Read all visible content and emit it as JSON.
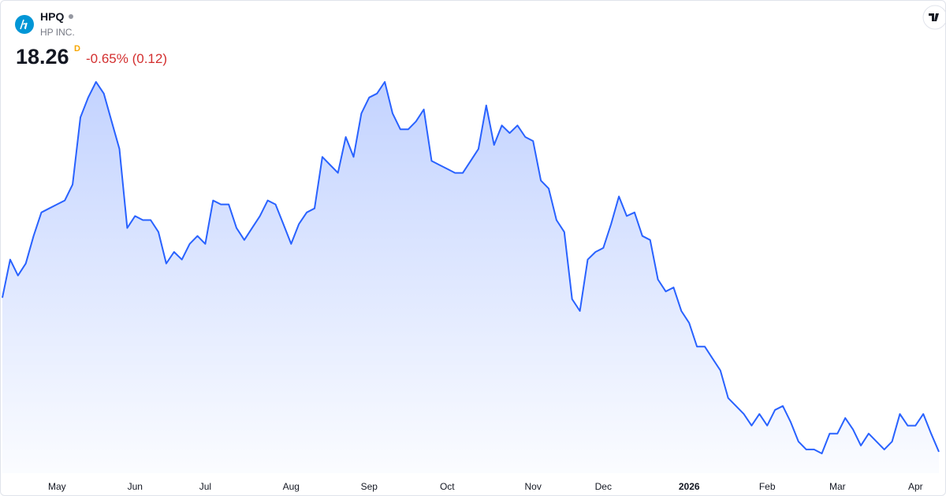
{
  "chart_data": {
    "type": "area",
    "title": "HPQ",
    "subtitle": "HP INC.",
    "price": 18.26,
    "interval": "D",
    "change": "-0.65% (0.12)",
    "color": "#2962ff",
    "change_color": "#d32f2f",
    "categories": [
      null,
      null,
      null,
      null,
      null,
      null,
      null,
      "May",
      null,
      null,
      null,
      null,
      null,
      null,
      null,
      null,
      null,
      "Jun",
      null,
      null,
      null,
      null,
      null,
      null,
      null,
      null,
      "Jul",
      null,
      null,
      null,
      null,
      null,
      null,
      null,
      null,
      null,
      null,
      "Aug",
      null,
      null,
      null,
      null,
      null,
      null,
      null,
      null,
      null,
      "Sep",
      null,
      null,
      null,
      null,
      null,
      null,
      null,
      null,
      null,
      "Oct",
      null,
      null,
      null,
      null,
      null,
      null,
      null,
      null,
      null,
      null,
      "Nov",
      null,
      null,
      null,
      null,
      null,
      null,
      null,
      null,
      "Dec",
      null,
      null,
      null,
      null,
      null,
      null,
      null,
      null,
      null,
      null,
      "2026",
      null,
      null,
      null,
      null,
      null,
      null,
      null,
      null,
      null,
      "Feb",
      null,
      null,
      null,
      null,
      null,
      null,
      null,
      null,
      "Mar",
      null,
      null,
      null,
      null,
      null,
      null,
      null,
      null,
      null,
      "Apr",
      null,
      null,
      null
    ],
    "values": [
      22.9,
      24.05,
      23.57,
      23.93,
      24.76,
      25.47,
      25.59,
      25.71,
      25.83,
      26.31,
      28.33,
      28.93,
      29.4,
      29.05,
      28.21,
      27.38,
      25.0,
      25.36,
      25.24,
      25.24,
      24.88,
      23.93,
      24.28,
      24.05,
      24.52,
      24.76,
      24.52,
      25.83,
      25.71,
      25.71,
      25.0,
      24.64,
      25.0,
      25.36,
      25.83,
      25.71,
      25.12,
      24.52,
      25.12,
      25.47,
      25.59,
      27.14,
      26.9,
      26.66,
      27.74,
      27.14,
      28.45,
      28.93,
      29.05,
      29.4,
      28.45,
      27.97,
      27.97,
      28.21,
      28.57,
      27.02,
      26.9,
      26.78,
      26.66,
      26.66,
      27.02,
      27.38,
      28.69,
      27.5,
      28.09,
      27.86,
      28.09,
      27.74,
      27.62,
      26.43,
      26.19,
      25.24,
      24.88,
      22.86,
      22.5,
      24.05,
      24.28,
      24.4,
      25.12,
      25.95,
      25.36,
      25.47,
      24.76,
      24.64,
      23.45,
      23.09,
      23.21,
      22.5,
      22.14,
      21.43,
      21.43,
      21.07,
      20.71,
      19.88,
      19.64,
      19.4,
      19.05,
      19.4,
      19.05,
      19.52,
      19.64,
      19.16,
      18.57,
      18.33,
      18.33,
      18.21,
      18.81,
      18.81,
      19.28,
      18.93,
      18.45,
      18.81,
      18.57,
      18.33,
      18.57,
      19.4,
      19.05,
      19.05,
      19.4,
      18.81,
      18.26
    ]
  }
}
